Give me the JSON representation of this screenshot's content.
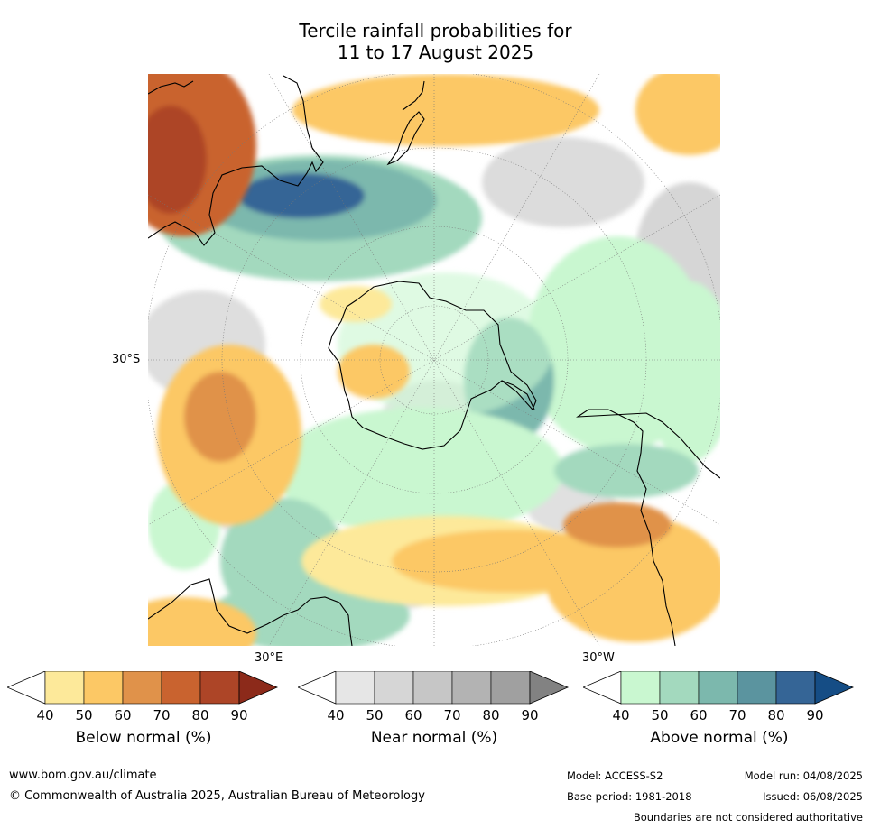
{
  "title": {
    "line1": "Tercile rainfall probabilities for",
    "line2": "11 to 17 August 2025"
  },
  "map": {
    "projection": "south-polar-stereographic",
    "labels": {
      "lat": "30°S",
      "lon_e": "30°E",
      "lon_w": "30°W"
    },
    "regions": [
      {
        "name": "western-australia-high-below",
        "category": "below",
        "level": 80
      },
      {
        "name": "tasman-sea-band-above",
        "category": "above",
        "level": 70
      },
      {
        "name": "south-atlantic-west-below",
        "category": "below",
        "level": 70
      },
      {
        "name": "south-atlantic-east-below",
        "category": "below",
        "level": 70
      },
      {
        "name": "drake-passage-above",
        "category": "above",
        "level": 70
      },
      {
        "name": "east-pacific-above",
        "category": "above",
        "level": 50
      },
      {
        "name": "pacific-near-normal",
        "category": "near",
        "level": 50
      },
      {
        "name": "south-africa-above",
        "category": "above",
        "level": 60
      }
    ]
  },
  "colorbars": [
    {
      "name": "below",
      "label": "Below normal (%)",
      "ticks": [
        "40",
        "50",
        "60",
        "70",
        "80",
        "90"
      ],
      "colors": [
        "#ffffff",
        "#fde99a",
        "#fcc865",
        "#e0924a",
        "#c9632f",
        "#ad4527",
        "#8c2a1a"
      ]
    },
    {
      "name": "near",
      "label": "Near normal (%)",
      "ticks": [
        "40",
        "50",
        "60",
        "70",
        "80",
        "90"
      ],
      "colors": [
        "#ffffff",
        "#e6e6e6",
        "#d6d6d6",
        "#c6c6c6",
        "#b3b3b3",
        "#a0a0a0",
        "#828282"
      ]
    },
    {
      "name": "above",
      "label": "Above normal (%)",
      "ticks": [
        "40",
        "50",
        "60",
        "70",
        "80",
        "90"
      ],
      "colors": [
        "#ffffff",
        "#c9f7d0",
        "#a3d9be",
        "#7cb8ad",
        "#5b949f",
        "#356596",
        "#154d85"
      ]
    }
  ],
  "footer": {
    "website": "www.bom.gov.au/climate",
    "copyright": "© Commonwealth of Australia 2025, Australian Bureau of Meteorology",
    "model": "Model: ACCESS-S2",
    "base_period": "Base period: 1981-2018",
    "model_run": "Model run: 04/08/2025",
    "issued": "Issued: 06/08/2025",
    "disclaimer": "Boundaries are not considered authoritative"
  }
}
